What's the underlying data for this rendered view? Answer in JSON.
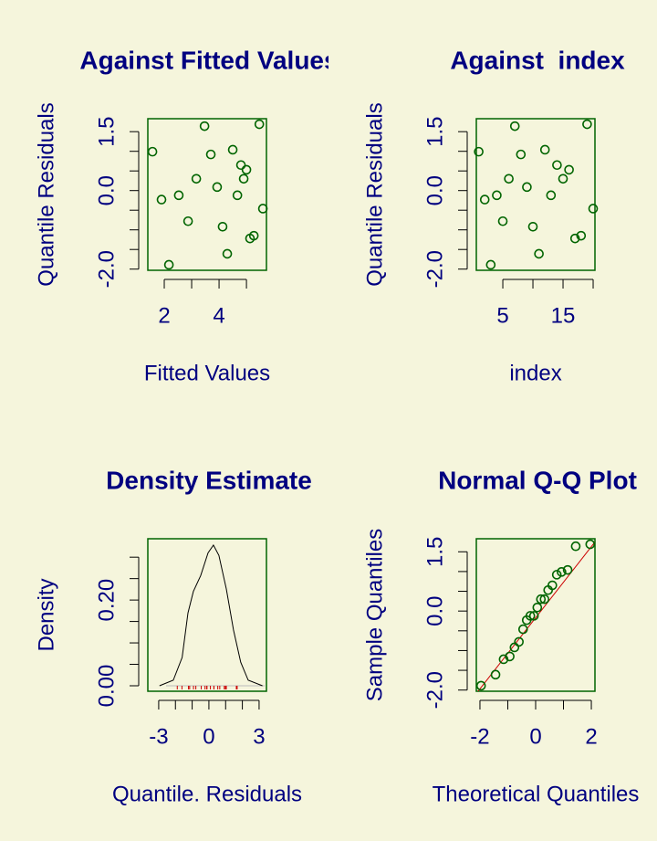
{
  "chart_data": [
    {
      "type": "scatter",
      "title": "Against Fitted Values",
      "xlabel": "Fitted Values",
      "ylabel": "Quantile Residuals",
      "x": [
        1.57,
        1.9,
        2.17,
        2.53,
        2.87,
        3.17,
        3.47,
        3.7,
        3.93,
        4.13,
        4.3,
        4.5,
        4.67,
        4.8,
        4.9,
        5.0,
        5.13,
        5.27,
        5.47,
        5.6
      ],
      "values": [
        0.99,
        -0.23,
        -1.89,
        -0.12,
        -0.78,
        0.3,
        1.64,
        0.92,
        0.09,
        -0.92,
        -1.61,
        1.04,
        -0.12,
        0.65,
        0.3,
        0.53,
        -1.22,
        -1.15,
        1.69,
        -0.46
      ],
      "color": "#006400",
      "xlim": [
        1.4,
        5.73
      ],
      "ylim": [
        -2.03,
        1.83
      ],
      "xticks": [
        2,
        4
      ],
      "xticks_minor": [
        3,
        5
      ],
      "yticks": [
        {
          "value": -2,
          "label": "-2.0"
        },
        {
          "value": 0,
          "label": "0.0"
        },
        1.5
      ],
      "yticks_minor": [
        -1.5,
        -1,
        -0.5,
        0.5,
        1
      ]
    },
    {
      "type": "scatter",
      "title": "Against  index",
      "xlabel": "index",
      "ylabel": "Quantile Residuals",
      "x": [
        1,
        2,
        3,
        4,
        5,
        6,
        7,
        8,
        9,
        10,
        11,
        12,
        13,
        14,
        15,
        16,
        17,
        18,
        19,
        20
      ],
      "values": [
        0.99,
        -0.23,
        -1.89,
        -0.12,
        -0.78,
        0.3,
        1.64,
        0.92,
        0.09,
        -0.92,
        -1.61,
        1.04,
        -0.12,
        0.65,
        0.3,
        0.53,
        -1.22,
        -1.15,
        1.69,
        -0.46
      ],
      "color": "#006400",
      "xlim": [
        0.6,
        20.3
      ],
      "ylim": [
        -2.03,
        1.83
      ],
      "xticks": [
        5,
        15
      ],
      "xticks_minor": [
        10,
        20
      ],
      "yticks": [
        {
          "value": -2,
          "label": "-2.0"
        },
        {
          "value": 0,
          "label": "0.0"
        },
        1.5
      ],
      "yticks_minor": [
        -1.5,
        -1,
        -0.5,
        0.5,
        1
      ]
    },
    {
      "type": "line",
      "title": "Density Estimate",
      "xlabel": "Quantile. Residuals",
      "ylabel": "Density",
      "x": [
        -2.95,
        -2.13,
        -1.6,
        -1.25,
        -0.93,
        -0.49,
        -0.05,
        0.27,
        0.6,
        1.04,
        1.47,
        1.9,
        2.35,
        3.2
      ],
      "values": [
        0,
        0.013,
        0.066,
        0.17,
        0.22,
        0.257,
        0.31,
        0.328,
        0.304,
        0.226,
        0.13,
        0.055,
        0.013,
        0
      ],
      "color": "#000000",
      "rug": [
        0.99,
        -0.23,
        -1.89,
        -0.12,
        -0.78,
        0.3,
        1.64,
        0.92,
        0.09,
        -0.92,
        -1.61,
        1.04,
        -0.12,
        0.65,
        0.3,
        0.53,
        -1.22,
        -1.15,
        1.69,
        -0.46
      ],
      "rug_color": "#cc0000",
      "xlim": [
        -3.65,
        3.44
      ],
      "ylim": [
        -0.0128,
        0.343
      ],
      "xticks": [
        -3,
        0,
        3
      ],
      "xticks_minor": [
        -2,
        -1,
        1,
        2
      ],
      "yticks": [
        {
          "value": 0,
          "label": "0.00"
        },
        {
          "value": 0.2,
          "label": "0.20"
        }
      ],
      "yticks_minor": [
        0.05,
        0.1,
        0.15,
        0.25,
        0.3
      ]
    },
    {
      "type": "scatter",
      "title": "Normal Q-Q Plot",
      "xlabel": "Theoretical Quantiles",
      "ylabel": "Sample Quantiles",
      "x": [
        -1.96,
        -1.44,
        -1.15,
        -0.93,
        -0.76,
        -0.6,
        -0.45,
        -0.32,
        -0.19,
        -0.06,
        0.06,
        0.19,
        0.32,
        0.45,
        0.6,
        0.76,
        0.93,
        1.15,
        1.44,
        1.96
      ],
      "values": [
        -1.89,
        -1.61,
        -1.22,
        -1.15,
        -0.92,
        -0.78,
        -0.46,
        -0.23,
        -0.12,
        -0.12,
        0.09,
        0.3,
        0.3,
        0.53,
        0.65,
        0.92,
        0.99,
        1.04,
        1.64,
        1.69
      ],
      "color": "#006400",
      "qq_line": {
        "intercept": -0.17,
        "slope": 0.9,
        "color": "#cc0000"
      },
      "xlim": [
        -2.13,
        2.13
      ],
      "ylim": [
        -2.03,
        1.83
      ],
      "xticks": [
        -2,
        0,
        2
      ],
      "xticks_minor": [
        -1,
        1
      ],
      "yticks": [
        {
          "value": -2,
          "label": "-2.0"
        },
        {
          "value": 0,
          "label": "0.0"
        },
        1.5
      ],
      "yticks_minor": [
        -1.5,
        -1,
        -0.5,
        0.5,
        1
      ]
    }
  ]
}
